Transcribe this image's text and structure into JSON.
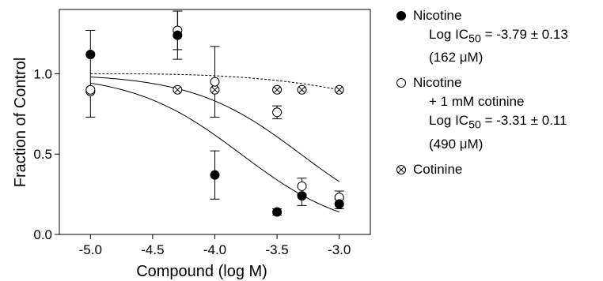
{
  "chart_data": {
    "type": "scatter",
    "xlabel": "Compound (log M)",
    "ylabel": "Fraction of Control",
    "xlim": [
      -5.25,
      -2.75
    ],
    "ylim": [
      0.0,
      1.4
    ],
    "xticks": [
      "-5.0",
      "-4.5",
      "-4.0",
      "-3.5",
      "-3.0"
    ],
    "xtick_values": [
      -5.0,
      -4.5,
      -4.0,
      -3.5,
      -3.0
    ],
    "yticks": [
      "0.0",
      "0.5",
      "1.0"
    ],
    "ytick_values": [
      0.0,
      0.5,
      1.0
    ],
    "grid": false,
    "legend_position": "right",
    "series": [
      {
        "name": "Nicotine",
        "marker": "filled-circle",
        "x": [
          -5.0,
          -4.3,
          -4.0,
          -3.5,
          -3.3,
          -3.0
        ],
        "y": [
          1.12,
          1.24,
          0.37,
          0.14,
          0.24,
          0.19
        ],
        "err": [
          0.0,
          0.15,
          0.15,
          0.02,
          0.06,
          0.03
        ],
        "fit_logIC50": -3.79,
        "fit_line": "solid"
      },
      {
        "name": "Nicotine + 1 mM cotinine",
        "marker": "open-circle",
        "x": [
          -5.0,
          -4.3,
          -4.0,
          -3.5,
          -3.3,
          -3.0
        ],
        "y": [
          0.9,
          1.27,
          0.95,
          0.76,
          0.3,
          0.23
        ],
        "err": [
          0.0,
          0.12,
          0.22,
          0.04,
          0.05,
          0.04
        ],
        "fit_logIC50": -3.31,
        "fit_line": "solid"
      },
      {
        "name": "Cotinine",
        "marker": "crossed-circle",
        "x": [
          -5.0,
          -4.3,
          -4.0,
          -3.5,
          -3.3,
          -3.0
        ],
        "y": [
          0.89,
          0.9,
          0.9,
          0.9,
          0.9,
          0.9
        ],
        "err": [
          0.0,
          0.0,
          0.0,
          0.0,
          0.0,
          0.0
        ],
        "fit_line": "dashed"
      }
    ],
    "shared_error_bar_at_-5.0": {
      "x": -5.0,
      "y": 1.0,
      "err": 0.27
    }
  },
  "legend": {
    "entries": [
      {
        "marker": "filled-circle",
        "lines": [
          "Nicotine",
          "Log IC50 = -3.79 ± 0.13",
          "(162 μM)"
        ]
      },
      {
        "marker": "open-circle",
        "lines": [
          "Nicotine",
          "+ 1 mM cotinine",
          "Log IC50 = -3.31 ± 0.11",
          "(490 μM)"
        ]
      },
      {
        "marker": "crossed-circle",
        "lines": [
          "Cotinine"
        ]
      }
    ],
    "nic_name": "Nicotine",
    "nic_ic50_prefix": "Log IC",
    "nic_ic50_sub": "50",
    "nic_ic50_value": " = -3.79 ± 0.13",
    "nic_conc": "(162 μM)",
    "combo_name": "Nicotine",
    "combo_add": "+ 1 mM cotinine",
    "combo_ic50_prefix": "Log IC",
    "combo_ic50_sub": "50",
    "combo_ic50_value": " = -3.31 ± 0.11",
    "combo_conc": "(490 μM)",
    "cot_name": "Cotinine"
  }
}
